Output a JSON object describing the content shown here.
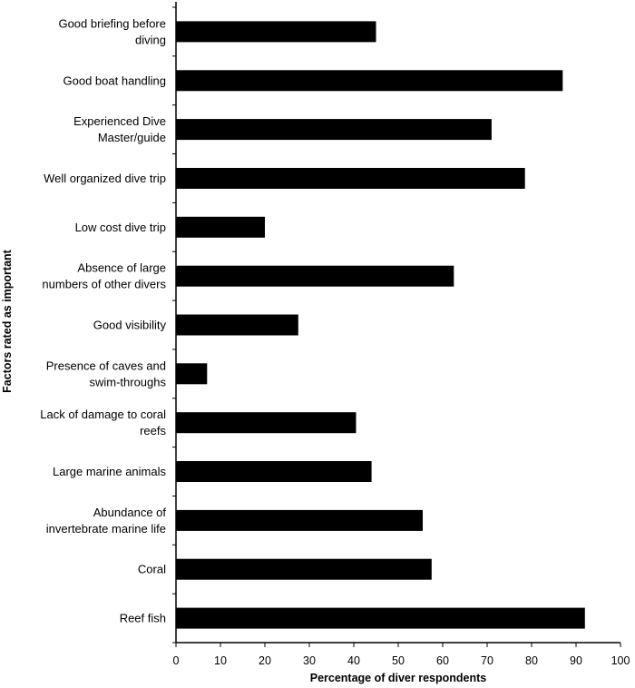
{
  "chart_data": {
    "type": "bar",
    "orientation": "horizontal",
    "categories": [
      "Good briefing before diving",
      "Good boat handling",
      "Experienced Dive Master/guide",
      "Well organized dive trip",
      "Low cost dive trip",
      "Absence of large numbers of other divers",
      "Good visibility",
      "Presence of caves and swim-throughs",
      "Lack of damage to coral reefs",
      "Large marine animals",
      "Abundance of invertebrate marine life",
      "Coral",
      "Reef fish"
    ],
    "category_lines": [
      [
        "Good briefing before",
        "diving"
      ],
      [
        "Good boat handling"
      ],
      [
        "Experienced Dive",
        "Master/guide"
      ],
      [
        "Well organized dive trip"
      ],
      [
        "Low cost dive trip"
      ],
      [
        "Absence of large",
        "numbers of other divers"
      ],
      [
        "Good visibility"
      ],
      [
        "Presence of caves and",
        "swim-throughs"
      ],
      [
        "Lack of damage to coral",
        "reefs"
      ],
      [
        "Large marine animals"
      ],
      [
        "Abundance of",
        "invertebrate marine life"
      ],
      [
        "Coral"
      ],
      [
        "Reef fish"
      ]
    ],
    "values": [
      45,
      87,
      71,
      78.5,
      20,
      62.5,
      27.5,
      7,
      40.5,
      44,
      55.5,
      57.5,
      92
    ],
    "title": "",
    "xlabel": "Percentage of diver respondents",
    "ylabel": "Factors rated as important",
    "xlim": [
      0,
      100
    ],
    "xticks": [
      0,
      10,
      20,
      30,
      40,
      50,
      60,
      70,
      80,
      90,
      100
    ],
    "bar_color": "#000000",
    "grid": false,
    "legend": false
  }
}
